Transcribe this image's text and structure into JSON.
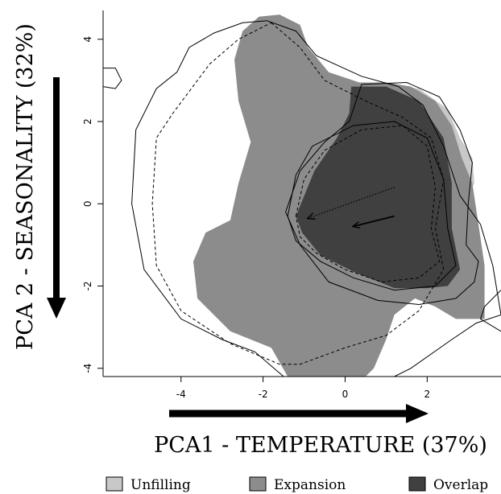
{
  "chart_data": {
    "type": "area",
    "xlabel": "PCA1 - TEMPERATURE (37%)",
    "ylabel": "PCA 2 - SEASONALITY (32%)",
    "xlim": [
      -5.9,
      3.8
    ],
    "ylim": [
      -4.2,
      4.7
    ],
    "x_ticks": [
      -4,
      -2,
      0,
      2
    ],
    "y_ticks": [
      -4,
      -2,
      0,
      2,
      4
    ],
    "grid": false,
    "legend_position": "bottom",
    "legend": [
      {
        "label": "Unfilling",
        "color": "#c8c8c8"
      },
      {
        "label": "Expansion",
        "color": "#8c8c8c"
      },
      {
        "label": "Overlap",
        "color": "#404040"
      }
    ],
    "series": [
      {
        "name": "Unfilling",
        "color": "#c8c8c8",
        "polygon": [
          [
            0.9,
            2.95
          ],
          [
            1.8,
            2.8
          ],
          [
            2.5,
            2.3
          ],
          [
            2.8,
            1.6
          ],
          [
            3.1,
            1.1
          ],
          [
            3.15,
            0.5
          ],
          [
            2.9,
            0.0
          ],
          [
            2.6,
            0.8
          ],
          [
            2.4,
            1.6
          ],
          [
            2.0,
            2.3
          ],
          [
            1.3,
            2.7
          ]
        ]
      },
      {
        "name": "Expansion",
        "color": "#8c8c8c",
        "polygon": [
          [
            -2.1,
            4.55
          ],
          [
            -1.6,
            4.6
          ],
          [
            -1.1,
            4.35
          ],
          [
            -0.9,
            3.8
          ],
          [
            -0.4,
            3.2
          ],
          [
            0.35,
            2.95
          ],
          [
            1.0,
            2.95
          ],
          [
            1.6,
            2.85
          ],
          [
            2.2,
            2.5
          ],
          [
            2.6,
            1.9
          ],
          [
            2.85,
            1.1
          ],
          [
            3.1,
            0.5
          ],
          [
            3.25,
            -0.5
          ],
          [
            3.4,
            -1.5
          ],
          [
            3.4,
            -2.8
          ],
          [
            2.7,
            -2.8
          ],
          [
            2.2,
            -2.5
          ],
          [
            1.7,
            -2.3
          ],
          [
            1.2,
            -2.7
          ],
          [
            1.0,
            -3.3
          ],
          [
            0.7,
            -4.0
          ],
          [
            0.5,
            -4.2
          ],
          [
            -1.4,
            -4.2
          ],
          [
            -1.8,
            -3.5
          ],
          [
            -2.8,
            -3.1
          ],
          [
            -3.6,
            -2.3
          ],
          [
            -3.7,
            -1.4
          ],
          [
            -3.4,
            -0.7
          ],
          [
            -2.8,
            -0.4
          ],
          [
            -2.6,
            0.5
          ],
          [
            -2.3,
            1.5
          ],
          [
            -2.6,
            2.5
          ],
          [
            -2.7,
            3.5
          ],
          [
            -2.5,
            4.2
          ]
        ]
      },
      {
        "name": "Overlap",
        "color": "#404040",
        "polygon": [
          [
            0.15,
            2.85
          ],
          [
            1.0,
            2.85
          ],
          [
            1.8,
            2.5
          ],
          [
            2.4,
            1.6
          ],
          [
            2.6,
            0.5
          ],
          [
            2.6,
            -0.6
          ],
          [
            2.8,
            -1.6
          ],
          [
            2.5,
            -2.0
          ],
          [
            2.0,
            -2.05
          ],
          [
            1.2,
            -2.05
          ],
          [
            0.2,
            -1.65
          ],
          [
            -0.6,
            -1.25
          ],
          [
            -1.05,
            -0.7
          ],
          [
            -1.2,
            -0.3
          ],
          [
            -0.75,
            0.8
          ],
          [
            -0.2,
            1.6
          ],
          [
            0.1,
            2.2
          ]
        ]
      }
    ],
    "contours": [
      {
        "style": "solid",
        "points": [
          [
            -1.9,
            4.45
          ],
          [
            -1.2,
            4.2
          ],
          [
            -0.7,
            3.6
          ],
          [
            0.4,
            3.1
          ],
          [
            1.3,
            2.85
          ],
          [
            1.9,
            2.4
          ],
          [
            2.4,
            1.4
          ],
          [
            2.8,
            0.2
          ],
          [
            3.3,
            -0.5
          ],
          [
            3.6,
            -1.5
          ],
          [
            3.8,
            -2.7
          ],
          [
            3.2,
            -2.9
          ],
          [
            2.6,
            -3.3
          ],
          [
            1.6,
            -4.0
          ],
          [
            1.2,
            -4.2
          ],
          [
            0.2,
            -4.2
          ],
          [
            -1.5,
            -4.2
          ],
          [
            -2.2,
            -3.6
          ],
          [
            -3.0,
            -3.3
          ],
          [
            -4.0,
            -2.8
          ],
          [
            -4.9,
            -1.6
          ],
          [
            -5.2,
            0.0
          ],
          [
            -5.1,
            1.8
          ],
          [
            -4.6,
            2.8
          ],
          [
            -4.1,
            3.2
          ],
          [
            -3.8,
            3.8
          ],
          [
            -3.2,
            4.15
          ],
          [
            -2.5,
            4.4
          ],
          [
            -1.9,
            4.45
          ]
        ]
      },
      {
        "style": "dashed",
        "points": [
          [
            -1.8,
            4.4
          ],
          [
            -1.1,
            3.8
          ],
          [
            -0.5,
            3.0
          ],
          [
            0.5,
            2.5
          ],
          [
            1.4,
            2.1
          ],
          [
            2.1,
            1.6
          ],
          [
            2.4,
            0.6
          ],
          [
            2.2,
            -0.6
          ],
          [
            2.4,
            -1.6
          ],
          [
            1.8,
            -2.6
          ],
          [
            1.0,
            -3.2
          ],
          [
            0.0,
            -3.5
          ],
          [
            -1.1,
            -3.9
          ],
          [
            -1.6,
            -3.9
          ],
          [
            -2.8,
            -3.4
          ],
          [
            -4.0,
            -2.6
          ],
          [
            -4.6,
            -1.5
          ],
          [
            -4.7,
            0.0
          ],
          [
            -4.6,
            1.6
          ],
          [
            -4.2,
            2.2
          ],
          [
            -3.3,
            3.4
          ],
          [
            -2.6,
            4.0
          ],
          [
            -1.8,
            4.4
          ]
        ]
      },
      {
        "style": "solid",
        "points": [
          [
            0.4,
            2.9
          ],
          [
            1.5,
            2.95
          ],
          [
            2.3,
            2.6
          ],
          [
            2.8,
            1.8
          ],
          [
            3.1,
            1.0
          ],
          [
            3.0,
            0.0
          ],
          [
            2.95,
            -1.0
          ],
          [
            3.25,
            -1.4
          ],
          [
            3.15,
            -1.9
          ],
          [
            2.7,
            -2.3
          ],
          [
            1.8,
            -2.45
          ],
          [
            0.8,
            -2.35
          ],
          [
            -0.4,
            -1.9
          ],
          [
            -1.1,
            -1.0
          ],
          [
            -1.45,
            -0.2
          ],
          [
            -1.1,
            0.8
          ],
          [
            -0.5,
            1.5
          ],
          [
            0.1,
            2.0
          ],
          [
            0.3,
            2.6
          ],
          [
            0.4,
            2.9
          ]
        ]
      },
      {
        "style": "solid",
        "points": [
          [
            -1.4,
            -0.3
          ],
          [
            -1.2,
            0.7
          ],
          [
            -0.8,
            1.4
          ],
          [
            0.2,
            1.9
          ],
          [
            1.2,
            2.0
          ],
          [
            2.0,
            1.6
          ],
          [
            2.4,
            0.6
          ],
          [
            2.5,
            -0.6
          ],
          [
            2.7,
            -1.5
          ],
          [
            2.2,
            -2.0
          ],
          [
            1.2,
            -2.1
          ],
          [
            0.2,
            -1.8
          ],
          [
            -0.6,
            -1.4
          ],
          [
            -1.2,
            -0.9
          ],
          [
            -1.4,
            -0.3
          ]
        ]
      },
      {
        "style": "dashed",
        "points": [
          [
            -1.2,
            -0.3
          ],
          [
            -1.0,
            0.6
          ],
          [
            -0.5,
            1.3
          ],
          [
            0.4,
            1.8
          ],
          [
            1.4,
            1.9
          ],
          [
            2.0,
            1.4
          ],
          [
            2.2,
            0.4
          ],
          [
            2.1,
            -0.6
          ],
          [
            2.3,
            -1.4
          ],
          [
            1.8,
            -1.8
          ],
          [
            0.9,
            -1.9
          ],
          [
            0.0,
            -1.6
          ],
          [
            -0.7,
            -1.2
          ],
          [
            -1.1,
            -0.8
          ],
          [
            -1.2,
            -0.3
          ]
        ]
      },
      {
        "style": "solid",
        "points": [
          [
            -5.9,
            3.3
          ],
          [
            -5.6,
            3.3
          ],
          [
            -5.45,
            3.0
          ],
          [
            -5.6,
            2.8
          ],
          [
            -5.9,
            2.85
          ]
        ]
      },
      {
        "style": "solid",
        "points": [
          [
            3.8,
            -2.1
          ],
          [
            3.4,
            -2.5
          ],
          [
            3.3,
            -2.8
          ],
          [
            3.8,
            -3.1
          ]
        ]
      }
    ],
    "arrows": [
      {
        "style": "dotted",
        "from": [
          1.2,
          0.4
        ],
        "to": [
          -0.9,
          -0.35
        ]
      },
      {
        "style": "solid",
        "from": [
          1.2,
          -0.3
        ],
        "to": [
          0.2,
          -0.55
        ]
      }
    ]
  }
}
